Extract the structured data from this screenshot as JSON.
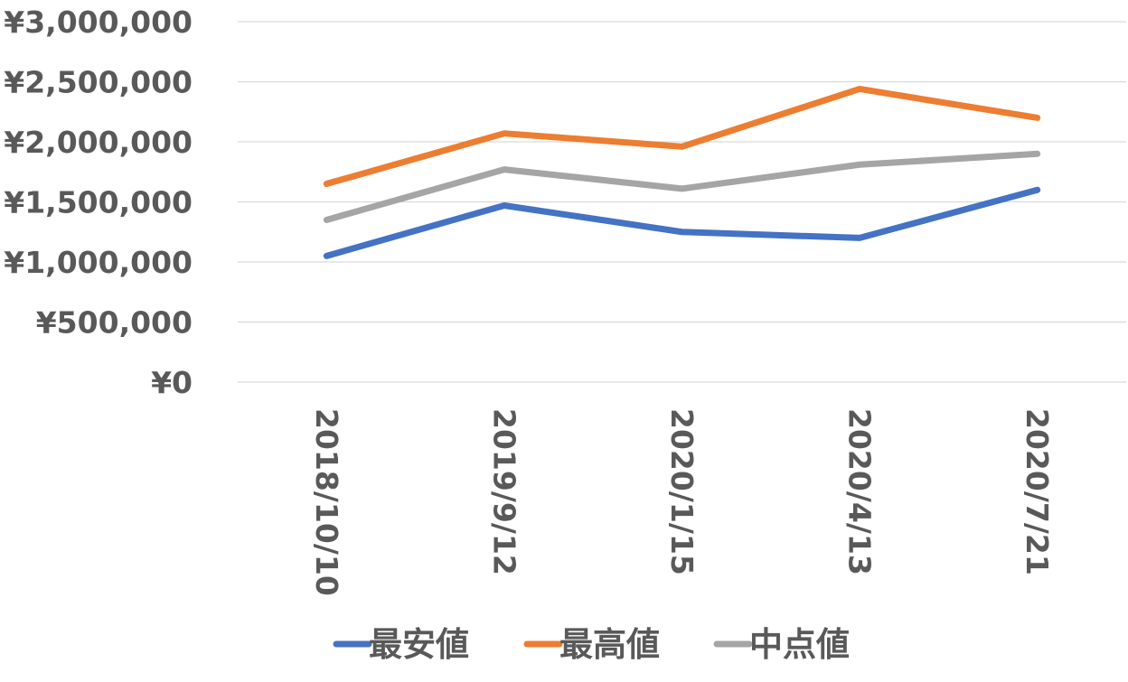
{
  "chart_data": {
    "type": "line",
    "categories": [
      "2018/10/10",
      "2019/9/12",
      "2020/1/15",
      "2020/4/13",
      "2020/7/21"
    ],
    "series": [
      {
        "name": "最安値",
        "color": "#4472C4",
        "values": [
          1050000,
          1470000,
          1250000,
          1200000,
          1600000
        ]
      },
      {
        "name": "最高値",
        "color": "#ED7D31",
        "values": [
          1650000,
          2070000,
          1960000,
          2440000,
          2200000
        ]
      },
      {
        "name": "中点値",
        "color": "#A5A5A5",
        "values": [
          1350000,
          1770000,
          1610000,
          1810000,
          1900000
        ]
      }
    ],
    "ylim": [
      0,
      3000000
    ],
    "y_ticks": [
      0,
      500000,
      1000000,
      1500000,
      2000000,
      2500000,
      3000000
    ],
    "y_tick_labels": [
      "¥0",
      "¥500,000",
      "¥1,000,000",
      "¥1,500,000",
      "¥2,000,000",
      "¥2,500,000",
      "¥3,000,000"
    ],
    "title": "",
    "xlabel": "",
    "ylabel": "",
    "grid": true,
    "legend_position": "bottom",
    "x_tick_rotation": "vertical"
  }
}
